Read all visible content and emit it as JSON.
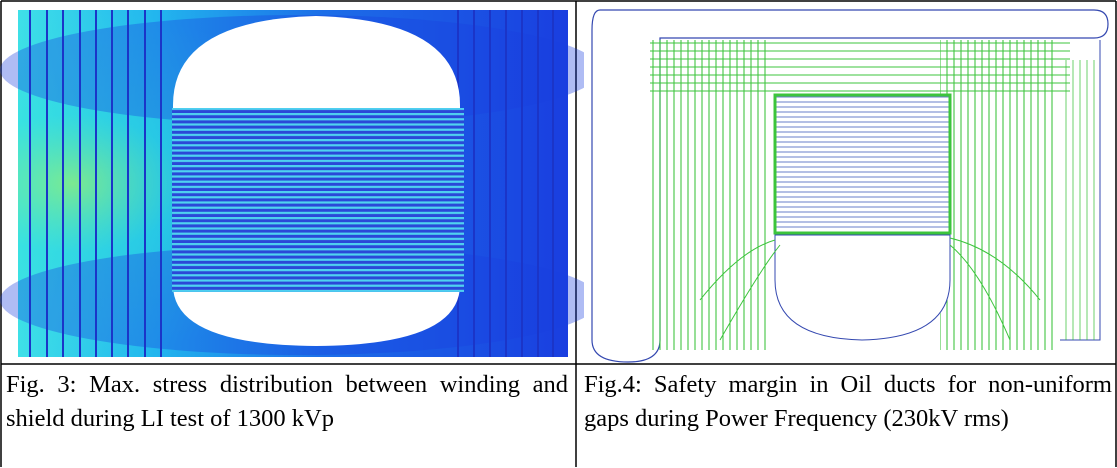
{
  "figures": [
    {
      "caption": "Fig. 3: Max. stress distribution between winding and shield during LI test of 1300 kVp"
    },
    {
      "caption": "Fig.4: Safety margin in Oil ducts for non-uniform gaps during Power Frequency (230kV rms)"
    }
  ]
}
